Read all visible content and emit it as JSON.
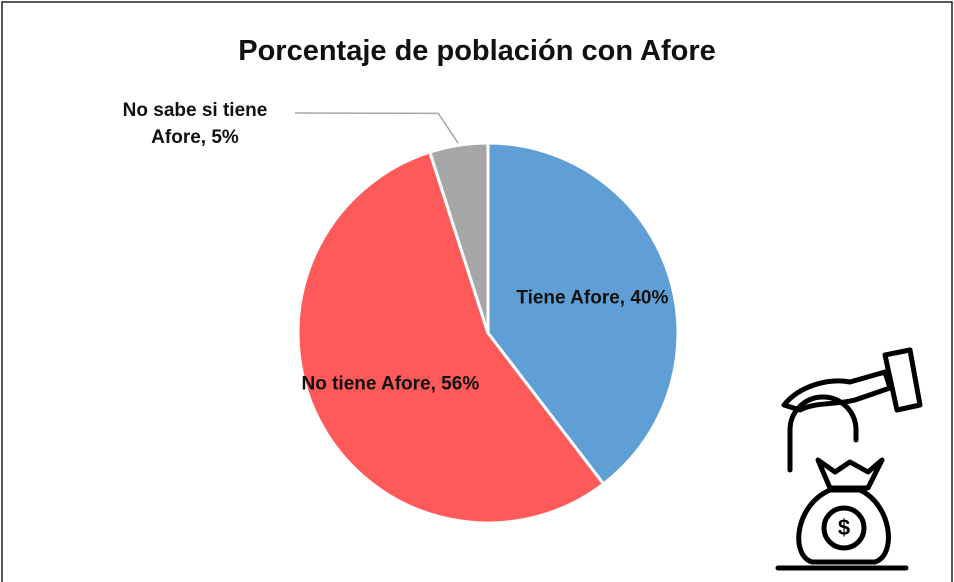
{
  "chart_data": {
    "type": "pie",
    "title": "Porcentaje de población con Afore",
    "categories": [
      "Tiene Afore",
      "No tiene Afore",
      "No sabe si tiene Afore"
    ],
    "values": [
      40,
      56,
      5
    ],
    "value_labels": [
      "Tiene Afore, 40%",
      "No tiene Afore, 56%",
      "No sabe si tiene Afore, 5%"
    ],
    "colors": [
      "#5f9fd6",
      "#ff5a5a",
      "#a6a6a6"
    ]
  }
}
